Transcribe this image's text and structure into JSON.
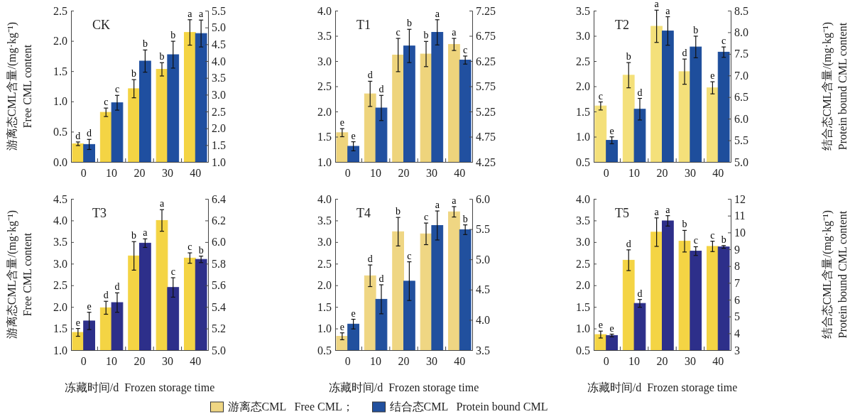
{
  "chart_data": [
    {
      "type": "bar",
      "title": "CK",
      "ylabel": "游离态CML含量/(mg·kg⁻¹)\nFree CML content",
      "categories": [
        "0",
        "10",
        "20",
        "30",
        "40"
      ],
      "ylim": [
        0,
        2.5
      ],
      "yticks": [
        {
          "value": 0,
          "label": "0.0"
        },
        0.5,
        {
          "value": 1,
          "label": "1.0"
        },
        1.5,
        {
          "value": 2,
          "label": "2.0"
        },
        2.5
      ],
      "y2lim": [
        1,
        5.5
      ],
      "y2ticks": [
        {
          "value": 1,
          "label": "1.0"
        },
        1.5,
        {
          "value": 2,
          "label": "2.0"
        },
        2.5,
        {
          "value": 3,
          "label": "3.0"
        },
        3.5,
        {
          "value": 4,
          "label": "4.0"
        },
        4.5,
        {
          "value": 5,
          "label": "5.0"
        },
        5.5
      ],
      "series": [
        {
          "color": "#f4d444",
          "values": [
            0.3,
            0.82,
            1.21,
            1.53,
            2.14
          ],
          "errors": [
            0.03,
            0.07,
            0.15,
            0.11,
            0.21
          ],
          "value_labels": [
            "d",
            "c",
            "b",
            "b",
            "a"
          ]
        },
        {
          "color": "#1f4fa0",
          "axis": "y2",
          "values": [
            1.52,
            2.76,
            4.0,
            4.19,
            4.82
          ],
          "errors": [
            0.15,
            0.22,
            0.33,
            0.4,
            0.4
          ],
          "value_labels": [
            "d",
            "c",
            "b",
            "b",
            "a"
          ]
        }
      ]
    },
    {
      "type": "bar",
      "title": "T1",
      "categories": [
        "0",
        "10",
        "20",
        "30",
        "40"
      ],
      "ylim": [
        1,
        4
      ],
      "yticks": [
        {
          "value": 1,
          "label": "1.0"
        },
        1.5,
        {
          "value": 2,
          "label": "2.0"
        },
        2.5,
        {
          "value": 3,
          "label": "3.0"
        },
        3.5,
        {
          "value": 4,
          "label": "4.0"
        }
      ],
      "y2lim": [
        4.25,
        7.25
      ],
      "y2ticks": [
        4.25,
        4.75,
        5.25,
        5.75,
        6.25,
        6.75,
        7.25
      ],
      "series": [
        {
          "color": "#eed47c",
          "values": [
            1.58,
            2.35,
            3.12,
            3.14,
            3.33
          ],
          "errors": [
            0.08,
            0.25,
            0.33,
            0.25,
            0.12
          ],
          "value_labels": [
            "e",
            "d",
            "c",
            "b",
            "a"
          ]
        },
        {
          "color": "#2150a0",
          "axis": "y2",
          "values": [
            4.56,
            5.32,
            6.55,
            6.82,
            6.27
          ],
          "errors": [
            0.09,
            0.25,
            0.33,
            0.25,
            0.08
          ],
          "value_labels": [
            "e",
            "d",
            "b",
            "a",
            "c"
          ]
        }
      ]
    },
    {
      "type": "bar",
      "title": "T2",
      "y2label": "结合态CML含量/(mg·kg⁻¹)\nProtein bound CML content",
      "categories": [
        "0",
        "10",
        "20",
        "30",
        "40"
      ],
      "ylim": [
        0.5,
        3.5
      ],
      "yticks": [
        0.5,
        {
          "value": 1,
          "label": "1.0"
        },
        1.5,
        {
          "value": 2,
          "label": "2.0"
        },
        2.5,
        {
          "value": 3,
          "label": "3.0"
        },
        3.5
      ],
      "y2lim": [
        5,
        8.5
      ],
      "y2ticks": [
        {
          "value": 5,
          "label": "5.0"
        },
        5.5,
        {
          "value": 6,
          "label": "6.0"
        },
        6.5,
        {
          "value": 7,
          "label": "7.0"
        },
        7.5,
        {
          "value": 8,
          "label": "8.0"
        },
        8.5
      ],
      "series": [
        {
          "color": "#f4e07a",
          "values": [
            1.61,
            2.22,
            3.19,
            2.29,
            1.97
          ],
          "errors": [
            0.08,
            0.25,
            0.32,
            0.25,
            0.12
          ],
          "value_labels": [
            "c",
            "b",
            "a",
            "d",
            "e"
          ]
        },
        {
          "color": "#1e4e9c",
          "axis": "y2",
          "values": [
            5.5,
            6.22,
            8.03,
            7.66,
            7.54
          ],
          "errors": [
            0.08,
            0.25,
            0.33,
            0.25,
            0.12
          ],
          "value_labels": [
            "e",
            "d",
            "a",
            "b",
            "c"
          ]
        }
      ]
    },
    {
      "type": "bar",
      "title": "T3",
      "ylabel": "游离态CML含量/(mg·kg⁻¹)\nFree CML content",
      "xlabel": "冻藏时间/d  Frozen storage time",
      "categories": [
        "0",
        "10",
        "20",
        "30",
        "40"
      ],
      "ylim": [
        1,
        4.5
      ],
      "yticks": [
        {
          "value": 1,
          "label": "1.0"
        },
        1.5,
        {
          "value": 2,
          "label": "2.0"
        },
        2.5,
        {
          "value": 3,
          "label": "3.0"
        },
        3.5,
        {
          "value": 4,
          "label": "4.0"
        },
        4.5
      ],
      "y2lim": [
        5,
        6.4
      ],
      "y2ticks": [
        {
          "value": 5,
          "label": "5.0"
        },
        5.2,
        5.4,
        5.6,
        5.8,
        {
          "value": 6,
          "label": "6.0"
        },
        6.2,
        6.4
      ],
      "series": [
        {
          "color": "#f4d444",
          "values": [
            1.41,
            1.98,
            3.18,
            4.0,
            3.13
          ],
          "errors": [
            0.09,
            0.15,
            0.33,
            0.25,
            0.12
          ],
          "value_labels": [
            "e",
            "d",
            "b",
            "a",
            "c"
          ]
        },
        {
          "color": "#2d2f8a",
          "axis": "y2",
          "values": [
            5.27,
            5.44,
            5.99,
            5.58,
            5.84
          ],
          "errors": [
            0.08,
            0.09,
            0.04,
            0.09,
            0.03
          ],
          "value_labels": [
            "e",
            "d",
            "a",
            "c",
            "b"
          ]
        }
      ]
    },
    {
      "type": "bar",
      "title": "T4",
      "xlabel": "冻藏时间/d  Frozen storage time",
      "legend": "bottom",
      "categories": [
        "0",
        "10",
        "20",
        "30",
        "40"
      ],
      "ylim": [
        0.5,
        4
      ],
      "yticks": [
        0.5,
        {
          "value": 1,
          "label": "1.0"
        },
        1.5,
        {
          "value": 2,
          "label": "2.0"
        },
        2.5,
        {
          "value": 3,
          "label": "3.0"
        },
        3.5,
        {
          "value": 4,
          "label": "4.0"
        }
      ],
      "y2lim": [
        3.5,
        6
      ],
      "y2ticks": [
        3.5,
        {
          "value": 4,
          "label": "4.0"
        },
        4.5,
        {
          "value": 5,
          "label": "5.0"
        },
        5.5,
        {
          "value": 6,
          "label": "6.0"
        }
      ],
      "series": [
        {
          "name": "游离态CML   Free CML；",
          "color": "#efd683",
          "values": [
            0.82,
            2.22,
            3.24,
            3.19,
            3.7
          ],
          "errors": [
            0.08,
            0.25,
            0.33,
            0.25,
            0.12
          ],
          "value_labels": [
            "e",
            "d",
            "b",
            "c",
            "a"
          ]
        },
        {
          "name": "结合态CML   Protein bound CML",
          "color": "#21509e",
          "axis": "y2",
          "values": [
            3.93,
            4.34,
            4.64,
            5.56,
            5.49
          ],
          "errors": [
            0.08,
            0.24,
            0.32,
            0.24,
            0.08
          ],
          "value_labels": [
            "e",
            "d",
            "c",
            "a",
            "b"
          ]
        }
      ]
    },
    {
      "type": "bar",
      "title": "T5",
      "xlabel": "冻藏时间/d  Frozen storage time",
      "y2label": "结合态CML含量/(mg·kg⁻¹)\nProtein bound CML content",
      "categories": [
        "0",
        "10",
        "20",
        "30",
        "40"
      ],
      "ylim": [
        0.5,
        4
      ],
      "yticks": [
        0.5,
        {
          "value": 1,
          "label": "1.0"
        },
        1.5,
        {
          "value": 2,
          "label": "2.0"
        },
        2.5,
        {
          "value": 3,
          "label": "3.0"
        },
        3.5,
        {
          "value": 4,
          "label": "4.0"
        }
      ],
      "y2lim": [
        3,
        12
      ],
      "y2ticks": [
        3,
        4,
        5,
        6,
        7,
        8,
        9,
        10,
        11,
        12
      ],
      "series": [
        {
          "color": "#f4d444",
          "values": [
            0.86,
            2.58,
            3.23,
            3.02,
            2.9
          ],
          "errors": [
            0.08,
            0.24,
            0.33,
            0.25,
            0.12
          ],
          "value_labels": [
            "e",
            "d",
            "a",
            "b",
            "c"
          ]
        },
        {
          "color": "#2d2f8a",
          "axis": "y2",
          "values": [
            3.87,
            5.78,
            10.69,
            8.89,
            9.14
          ],
          "errors": [
            0.08,
            0.23,
            0.31,
            0.26,
            0.08
          ],
          "value_labels": [
            "e",
            "d",
            "a",
            "c",
            "b"
          ]
        }
      ]
    }
  ]
}
